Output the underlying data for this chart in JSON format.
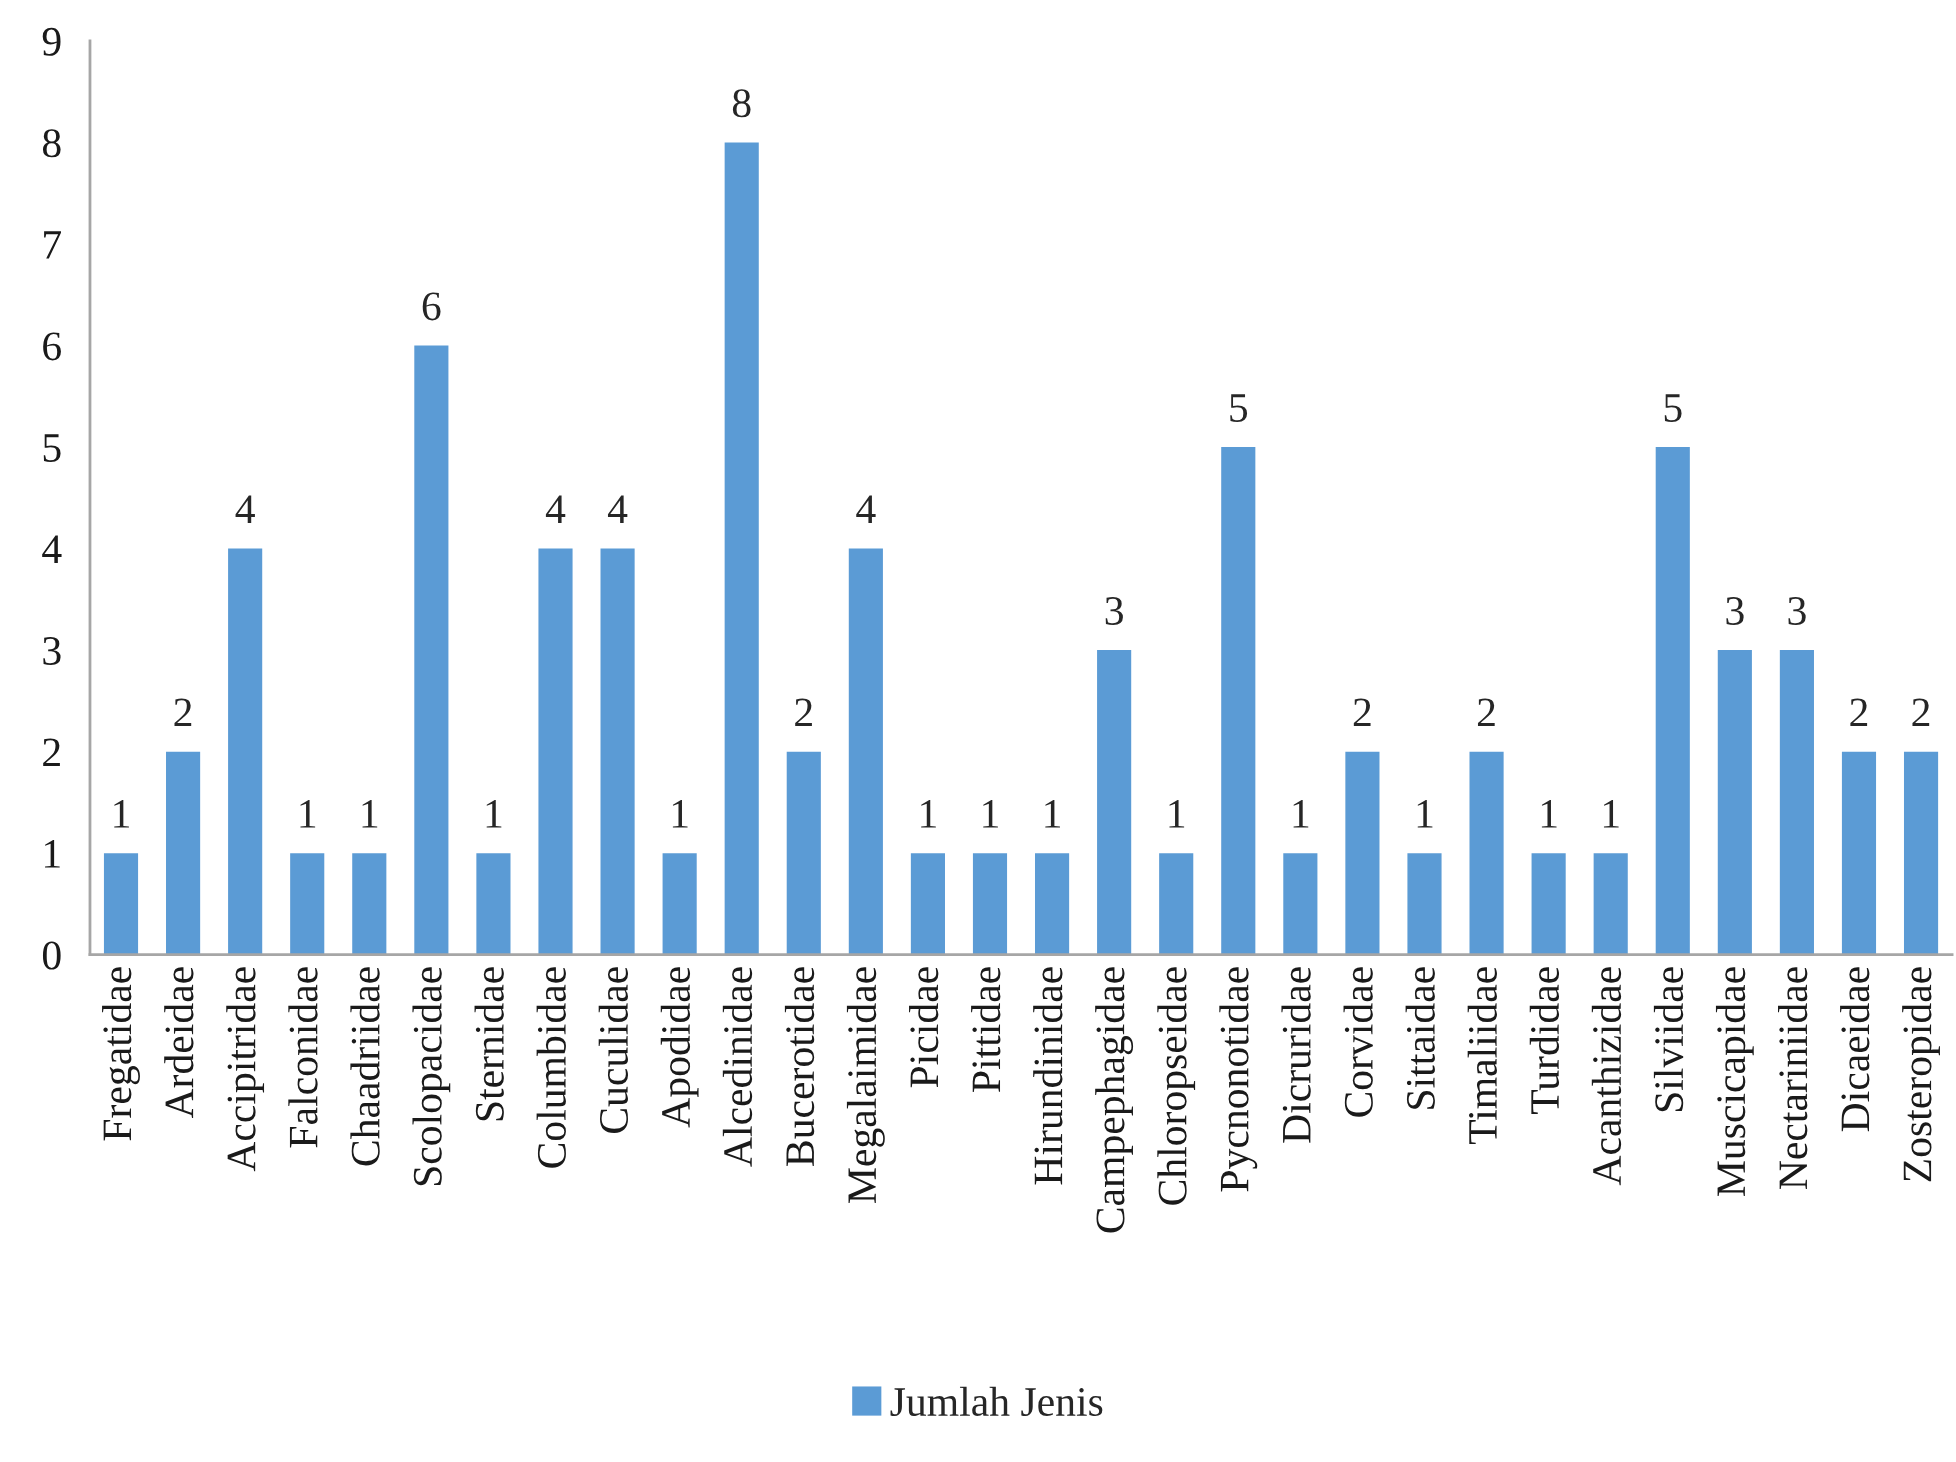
{
  "chart_data": {
    "type": "bar",
    "categories": [
      "Fregatidae",
      "Ardeidae",
      "Accipitridae",
      "Falconidae",
      "Chaadriidae",
      "Scolopacidae",
      "Sternidae",
      "Columbidae",
      "Cuculidae",
      "Apodidae",
      "Alcedinidae",
      "Bucerotidae",
      "Megalaimidae",
      "Picidae",
      "Pittidae",
      "Hirundinidae",
      "Campephagidae",
      "Chloropseidae",
      "Pycnonotidae",
      "Dicruridae",
      "Corvidae",
      "Sittaidae",
      "Timaliidae",
      "Turdidae",
      "Acanthizidae",
      "Silviidae",
      "Muscicapidae",
      "Nectariniidae",
      "Dicaeidae",
      "Zosteropidae"
    ],
    "series": [
      {
        "name": "Jumlah Jenis",
        "color": "#5b9bd5",
        "values": [
          1,
          2,
          4,
          1,
          1,
          6,
          1,
          4,
          4,
          1,
          8,
          2,
          4,
          1,
          1,
          1,
          3,
          1,
          5,
          1,
          2,
          1,
          2,
          1,
          1,
          5,
          3,
          3,
          2,
          2
        ]
      }
    ],
    "ylim": [
      0,
      9
    ],
    "yticks": [
      0,
      1,
      2,
      3,
      4,
      5,
      6,
      7,
      8,
      9
    ],
    "grid": false,
    "legend": "bottom",
    "data_labels": true
  }
}
